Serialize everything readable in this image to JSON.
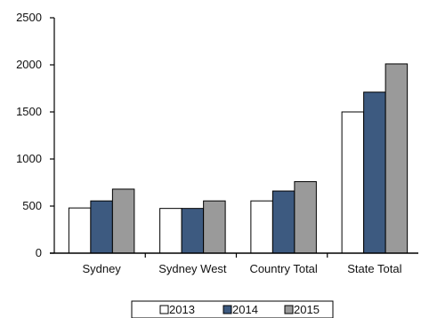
{
  "chart_data": {
    "type": "bar",
    "categories": [
      "Sydney",
      "Sydney West",
      "Country Total",
      "State Total"
    ],
    "series": [
      {
        "name": "2013",
        "color": "#ffffff",
        "values": [
          480,
          475,
          555,
          1500
        ]
      },
      {
        "name": "2014",
        "color": "#3d5a80",
        "values": [
          555,
          475,
          660,
          1710
        ]
      },
      {
        "name": "2015",
        "color": "#9a9a9a",
        "values": [
          680,
          555,
          760,
          2010
        ]
      }
    ],
    "y_ticks": [
      "0",
      "500",
      "1000",
      "1500",
      "2000",
      "2500"
    ],
    "ylim": [
      0,
      2500
    ],
    "legend_position": "bottom-center",
    "grid": false
  }
}
